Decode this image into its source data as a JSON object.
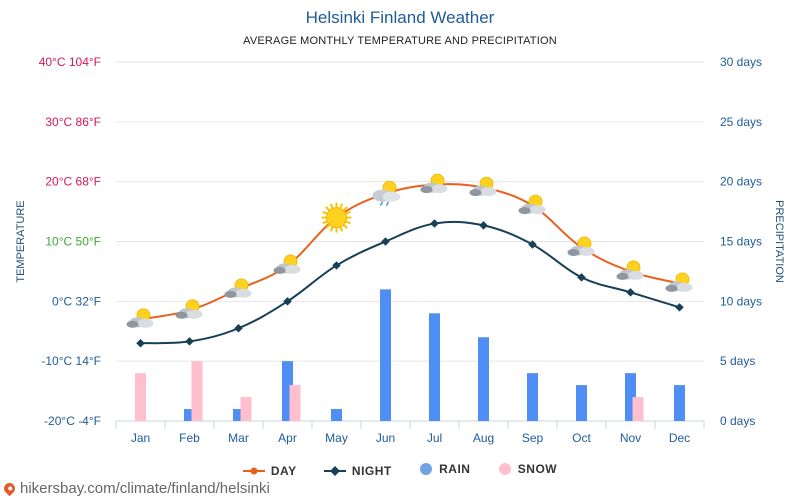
{
  "title": "Helsinki Finland Weather",
  "subtitle": "AVERAGE MONTHLY TEMPERATURE AND PRECIPITATION",
  "footer_text": "hikersbay.com/climate/finland/helsinki",
  "colors": {
    "day": "#e8601c",
    "night": "#173f55",
    "rain": "#4f8ff5",
    "snow": "#ffbfcc",
    "grid": "#e6e6e6",
    "axis_left_warm": "#d6165a",
    "axis_left_mild": "#3aaa35",
    "axis_left_cold": "#1f5c99",
    "axis_right": "#1f5c99"
  },
  "chart_data": {
    "type": "line",
    "title": "Helsinki Finland Weather",
    "subtitle": "AVERAGE MONTHLY TEMPERATURE AND PRECIPITATION",
    "categories": [
      "Jan",
      "Feb",
      "Mar",
      "Apr",
      "May",
      "Jun",
      "Jul",
      "Aug",
      "Sep",
      "Oct",
      "Nov",
      "Dec"
    ],
    "y_left": {
      "label": "TEMPERATURE",
      "min": -20,
      "max": 40,
      "ticks": [
        {
          "value": 40,
          "text": "40°C 104°F"
        },
        {
          "value": 30,
          "text": "30°C 86°F"
        },
        {
          "value": 20,
          "text": "20°C 68°F"
        },
        {
          "value": 10,
          "text": "10°C 50°F"
        },
        {
          "value": 0,
          "text": "0°C 32°F"
        },
        {
          "value": -10,
          "text": "-10°C 14°F"
        },
        {
          "value": -20,
          "text": "-20°C -4°F"
        }
      ]
    },
    "y_right": {
      "label": "PRECIPITATION",
      "min": 0,
      "max": 30,
      "ticks": [
        {
          "value": 30,
          "text": "30 days"
        },
        {
          "value": 25,
          "text": "25 days"
        },
        {
          "value": 20,
          "text": "20 days"
        },
        {
          "value": 15,
          "text": "15 days"
        },
        {
          "value": 10,
          "text": "10 days"
        },
        {
          "value": 5,
          "text": "5 days"
        },
        {
          "value": 0,
          "text": "0 days"
        }
      ]
    },
    "series": [
      {
        "name": "DAY",
        "type": "line",
        "axis": "left",
        "values": [
          -3,
          -1.5,
          2,
          6,
          14,
          18,
          19.5,
          19,
          16,
          9,
          5,
          3
        ]
      },
      {
        "name": "NIGHT",
        "type": "line",
        "axis": "left",
        "values": [
          -7,
          -6.7,
          -4.5,
          0,
          6,
          10,
          13,
          12.7,
          9.5,
          4,
          1.5,
          -1
        ]
      },
      {
        "name": "RAIN",
        "type": "bar",
        "axis": "right",
        "values": [
          0,
          1,
          1,
          5,
          1,
          11,
          9,
          7,
          4,
          3,
          4,
          3
        ]
      },
      {
        "name": "SNOW",
        "type": "bar",
        "axis": "right",
        "values": [
          4,
          5,
          2,
          3,
          0,
          0,
          0,
          0,
          0,
          0,
          2,
          0
        ]
      }
    ],
    "weather_icons": [
      "cloud-sun",
      "cloud-sun",
      "cloud-sun",
      "cloud-sun",
      "sun",
      "rain-cloud",
      "cloud-sun",
      "cloud-sun",
      "cloud-sun",
      "cloud-sun",
      "cloud-sun",
      "cloud-sun"
    ],
    "legend": [
      "DAY",
      "NIGHT",
      "RAIN",
      "SNOW"
    ]
  }
}
